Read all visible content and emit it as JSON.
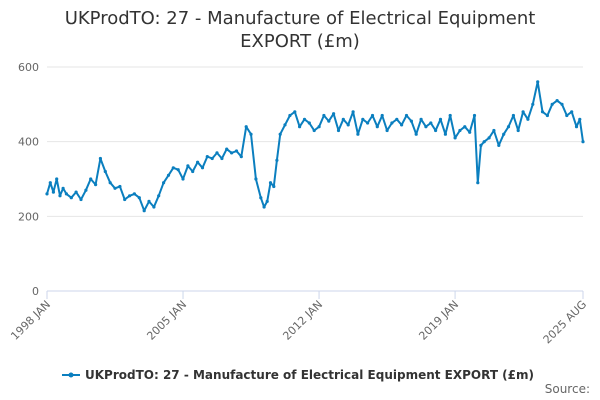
{
  "chart_data": {
    "type": "line",
    "title_lines": [
      "UKProdTO: 27 - Manufacture of Electrical Equipment",
      "EXPORT (£m)"
    ],
    "xlabel": "",
    "ylabel": "",
    "ylim": [
      0,
      600
    ],
    "yticks": [
      "0",
      "200",
      "400",
      "600"
    ],
    "xlim": [
      1998.0,
      2025.583
    ],
    "xticks": [
      {
        "label": "1998 JAN",
        "value": 1998.0
      },
      {
        "label": "2005 JAN",
        "value": 2005.0
      },
      {
        "label": "2012 JAN",
        "value": 2012.0
      },
      {
        "label": "2019 JAN",
        "value": 2019.0
      },
      {
        "label": "2025 AUG",
        "value": 2025.583
      }
    ],
    "grid": true,
    "legend_position": "bottom-center",
    "series": [
      {
        "name": "UKProdTO: 27 - Manufacture of Electrical Equipment EXPORT (£m)",
        "color": "#0b7fbf",
        "x": [
          1998.0,
          1998.17,
          1998.33,
          1998.5,
          1998.67,
          1998.83,
          1999.0,
          1999.25,
          1999.5,
          1999.75,
          2000.0,
          2000.25,
          2000.5,
          2000.75,
          2001.0,
          2001.25,
          2001.5,
          2001.75,
          2002.0,
          2002.25,
          2002.5,
          2002.75,
          2003.0,
          2003.25,
          2003.5,
          2003.75,
          2004.0,
          2004.25,
          2004.5,
          2004.75,
          2005.0,
          2005.25,
          2005.5,
          2005.75,
          2006.0,
          2006.25,
          2006.5,
          2006.75,
          2007.0,
          2007.25,
          2007.5,
          2007.75,
          2008.0,
          2008.25,
          2008.5,
          2008.75,
          2009.0,
          2009.17,
          2009.33,
          2009.5,
          2009.67,
          2009.83,
          2010.0,
          2010.25,
          2010.5,
          2010.75,
          2011.0,
          2011.25,
          2011.5,
          2011.75,
          2012.0,
          2012.25,
          2012.5,
          2012.75,
          2013.0,
          2013.25,
          2013.5,
          2013.75,
          2014.0,
          2014.25,
          2014.5,
          2014.75,
          2015.0,
          2015.25,
          2015.5,
          2015.75,
          2016.0,
          2016.25,
          2016.5,
          2016.75,
          2017.0,
          2017.25,
          2017.5,
          2017.75,
          2018.0,
          2018.25,
          2018.5,
          2018.75,
          2019.0,
          2019.25,
          2019.5,
          2019.75,
          2020.0,
          2020.17,
          2020.33,
          2020.5,
          2020.75,
          2021.0,
          2021.25,
          2021.5,
          2021.75,
          2022.0,
          2022.25,
          2022.5,
          2022.75,
          2023.0,
          2023.25,
          2023.5,
          2023.75,
          2024.0,
          2024.25,
          2024.5,
          2024.75,
          2025.0,
          2025.25,
          2025.42,
          2025.583
        ],
        "values": [
          260,
          290,
          265,
          300,
          255,
          275,
          260,
          250,
          265,
          245,
          270,
          300,
          285,
          355,
          320,
          290,
          275,
          280,
          245,
          255,
          260,
          250,
          215,
          240,
          225,
          255,
          290,
          310,
          330,
          325,
          300,
          335,
          320,
          345,
          330,
          360,
          355,
          370,
          355,
          380,
          370,
          375,
          360,
          440,
          420,
          300,
          250,
          225,
          240,
          290,
          280,
          350,
          420,
          445,
          470,
          480,
          440,
          460,
          450,
          430,
          440,
          470,
          455,
          475,
          430,
          460,
          445,
          480,
          420,
          460,
          450,
          470,
          440,
          470,
          430,
          450,
          460,
          445,
          470,
          455,
          420,
          460,
          440,
          450,
          430,
          460,
          420,
          470,
          410,
          430,
          440,
          425,
          470,
          290,
          390,
          400,
          410,
          430,
          390,
          420,
          440,
          470,
          430,
          480,
          460,
          500,
          560,
          480,
          470,
          500,
          510,
          500,
          470,
          480,
          440,
          460,
          400
        ]
      }
    ],
    "source_label": "Source:"
  }
}
